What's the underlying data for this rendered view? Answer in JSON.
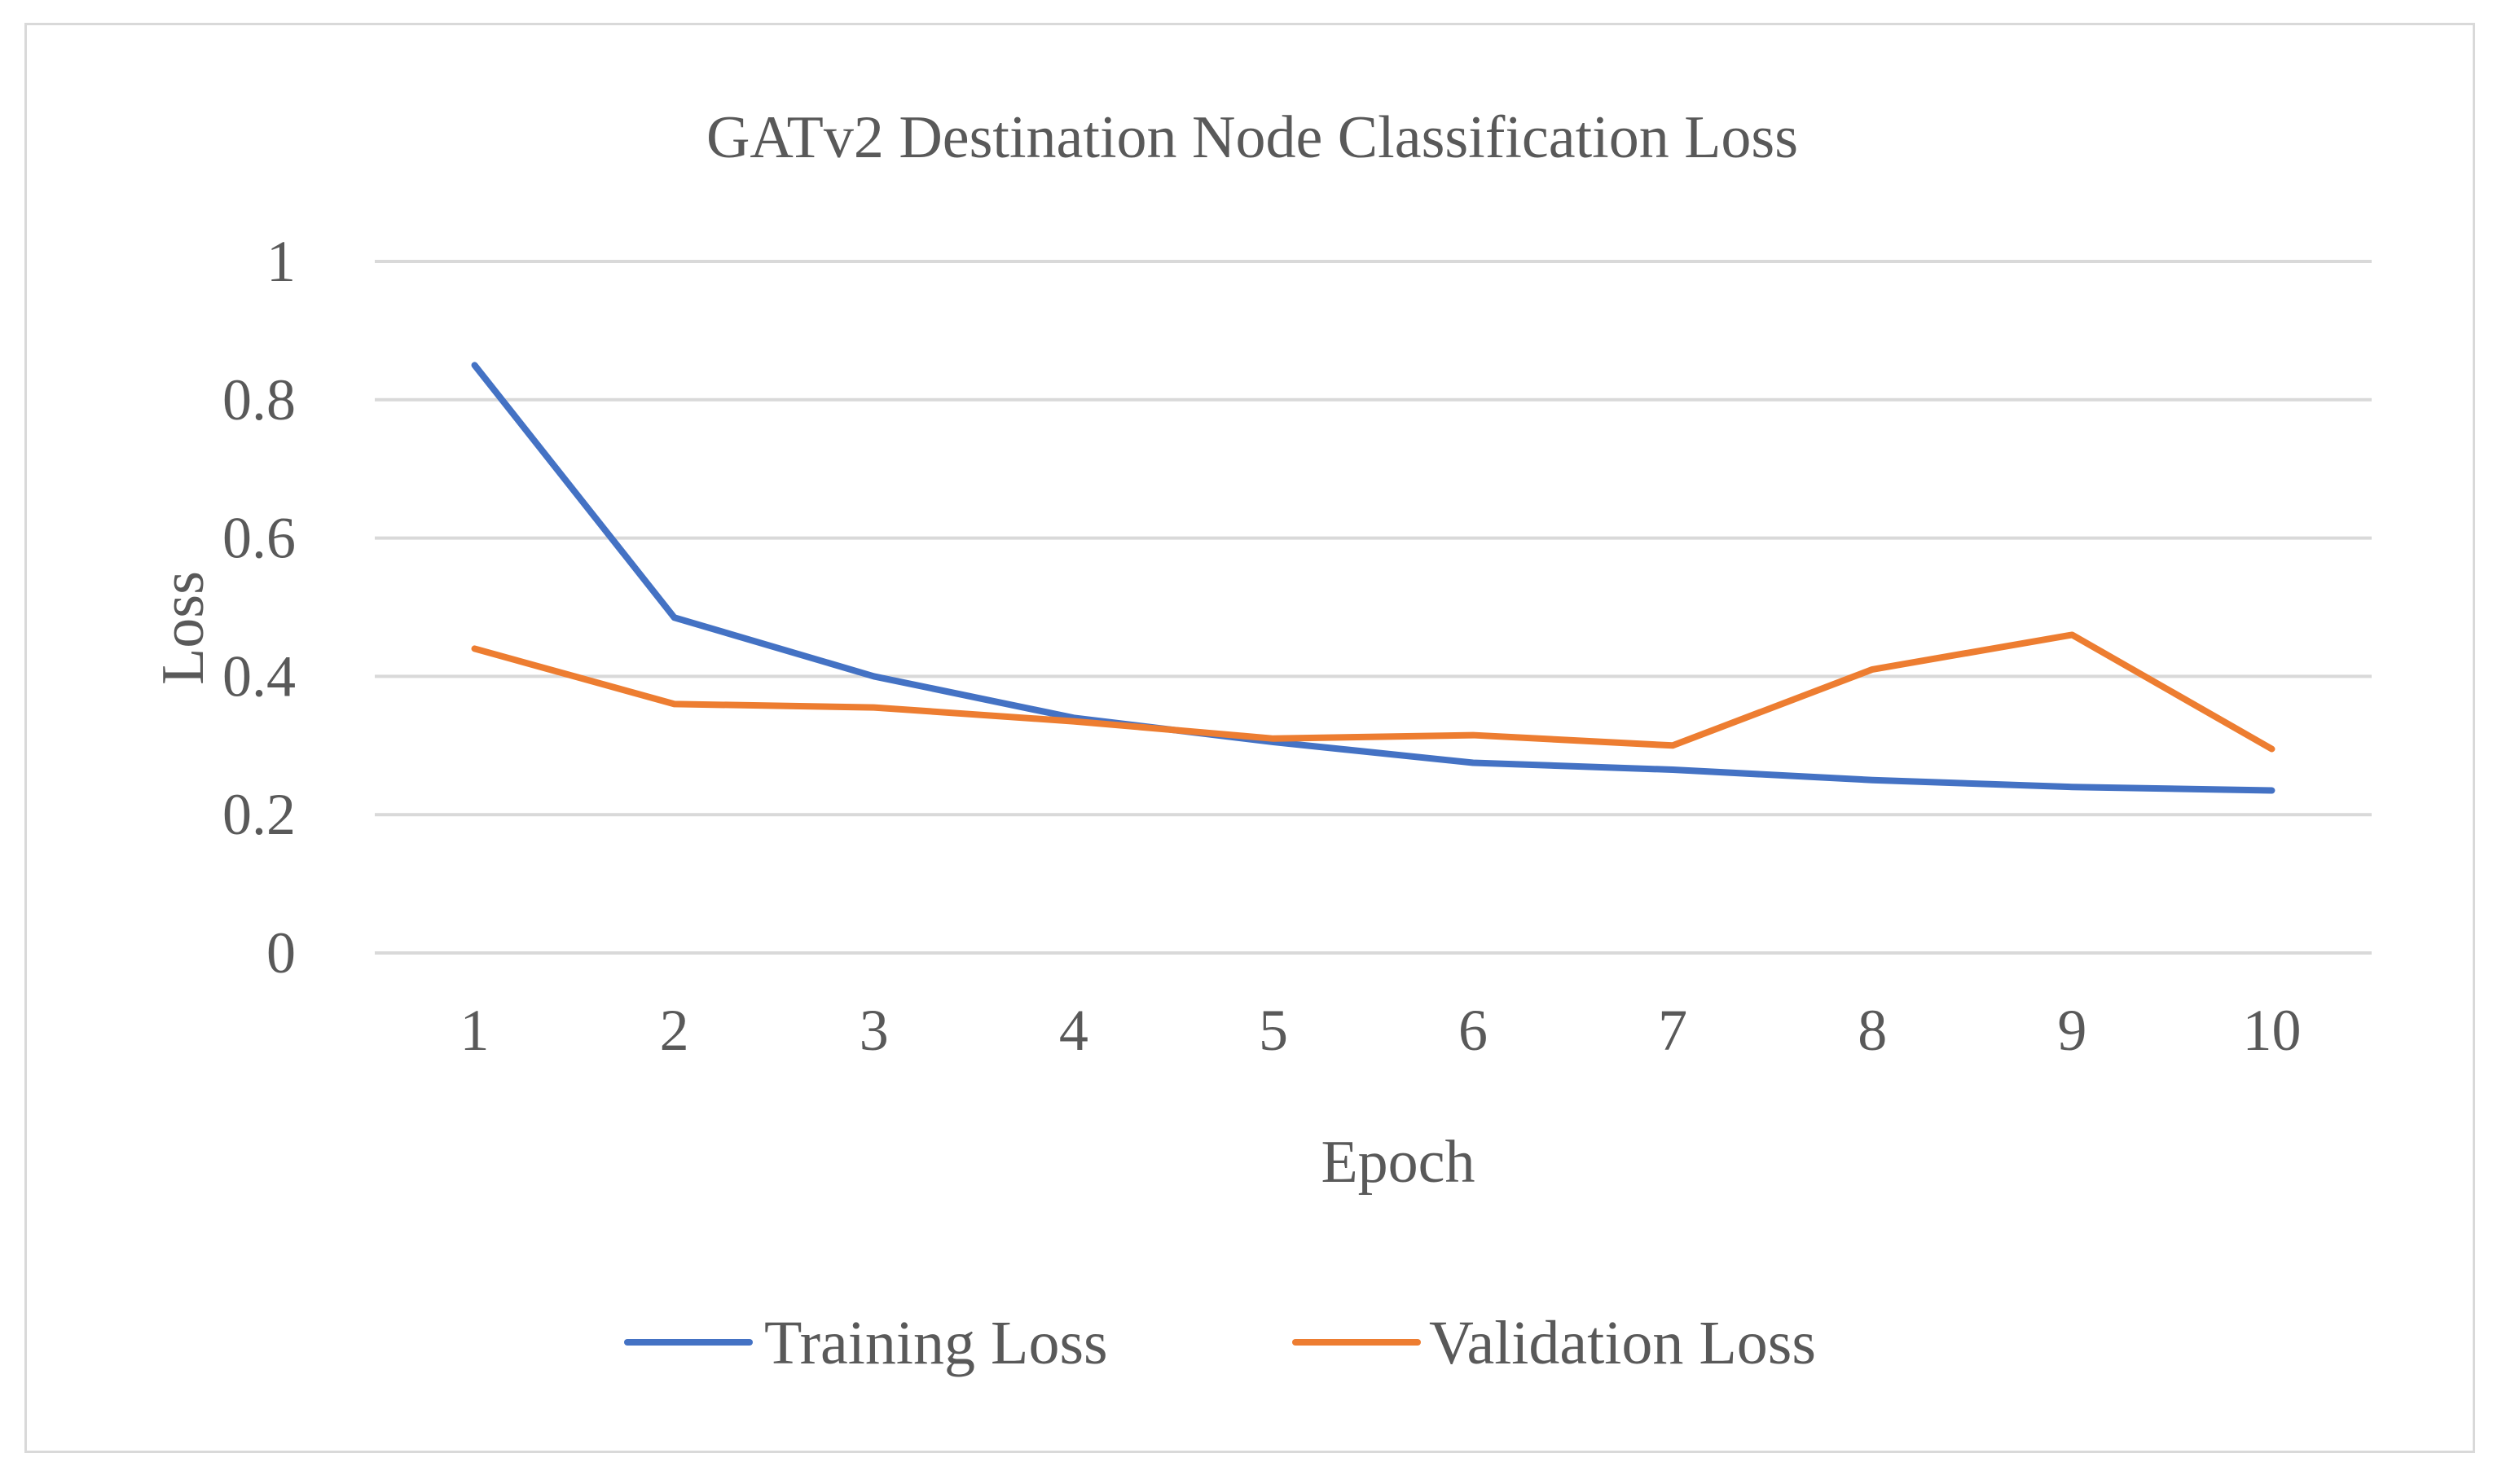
{
  "chart_data": {
    "type": "line",
    "title": "GATv2 Destination Node Classification Loss",
    "xlabel": "Epoch",
    "ylabel": "Loss",
    "x": [
      1,
      2,
      3,
      4,
      5,
      6,
      7,
      8,
      9,
      10
    ],
    "ylim": [
      0,
      1
    ],
    "yticks": [
      0,
      0.2,
      0.4,
      0.6,
      0.8,
      1
    ],
    "ytick_labels": [
      "0",
      "0.2",
      "0.4",
      "0.6",
      "0.8",
      "1"
    ],
    "grid": true,
    "legend_position": "bottom",
    "series": [
      {
        "name": "Training Loss",
        "color": "#4472c4",
        "values": [
          0.85,
          0.485,
          0.4,
          0.34,
          0.305,
          0.275,
          0.265,
          0.25,
          0.24,
          0.235
        ]
      },
      {
        "name": "Validation Loss",
        "color": "#ed7d31",
        "values": [
          0.44,
          0.36,
          0.355,
          0.335,
          0.31,
          0.315,
          0.3,
          0.41,
          0.46,
          0.295
        ]
      }
    ]
  }
}
